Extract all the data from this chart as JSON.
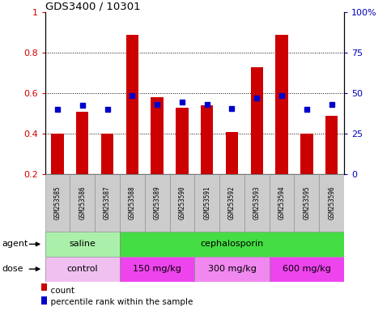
{
  "title": "GDS3400 / 10301",
  "samples": [
    "GSM253585",
    "GSM253586",
    "GSM253587",
    "GSM253588",
    "GSM253589",
    "GSM253590",
    "GSM253591",
    "GSM253592",
    "GSM253593",
    "GSM253594",
    "GSM253595",
    "GSM253596"
  ],
  "count_values": [
    0.4,
    0.51,
    0.4,
    0.89,
    0.58,
    0.53,
    0.54,
    0.41,
    0.73,
    0.89,
    0.4,
    0.49
  ],
  "percentile_values": [
    0.52,
    0.54,
    0.52,
    0.59,
    0.545,
    0.555,
    0.545,
    0.525,
    0.575,
    0.59,
    0.52,
    0.545
  ],
  "count_color": "#cc0000",
  "percentile_color": "#0000cc",
  "bar_bottom": 0.2,
  "ylim_left": [
    0.2,
    1.0
  ],
  "ylim_right": [
    0,
    100
  ],
  "yticks_left": [
    0.2,
    0.4,
    0.6,
    0.8,
    1.0
  ],
  "ytick_labels_left": [
    "0.2",
    "0.4",
    "0.6",
    "0.8",
    "1"
  ],
  "yticks_right": [
    0,
    25,
    50,
    75,
    100
  ],
  "ytick_labels_right": [
    "0",
    "25",
    "50",
    "75",
    "100%"
  ],
  "agent_groups": [
    {
      "label": "saline",
      "start": 0,
      "end": 3,
      "color": "#aaf0aa"
    },
    {
      "label": "cephalosporin",
      "start": 3,
      "end": 12,
      "color": "#44dd44"
    }
  ],
  "dose_groups": [
    {
      "label": "control",
      "start": 0,
      "end": 3,
      "color": "#f0c0f0"
    },
    {
      "label": "150 mg/kg",
      "start": 3,
      "end": 6,
      "color": "#ee44ee"
    },
    {
      "label": "300 mg/kg",
      "start": 6,
      "end": 9,
      "color": "#f088f0"
    },
    {
      "label": "600 mg/kg",
      "start": 9,
      "end": 12,
      "color": "#ee44ee"
    }
  ],
  "tick_bg_color": "#cccccc",
  "legend_count_label": "count",
  "legend_pct_label": "percentile rank within the sample",
  "agent_label": "agent",
  "dose_label": "dose",
  "fig_bg": "#ffffff"
}
